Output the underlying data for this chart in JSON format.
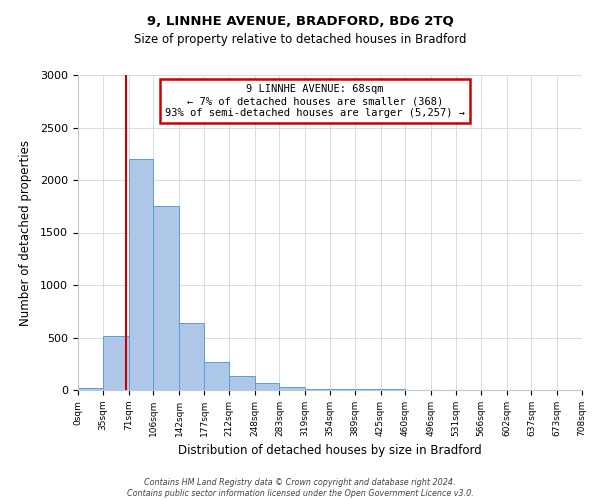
{
  "title1": "9, LINNHE AVENUE, BRADFORD, BD6 2TQ",
  "title2": "Size of property relative to detached houses in Bradford",
  "xlabel": "Distribution of detached houses by size in Bradford",
  "ylabel": "Number of detached properties",
  "bar_color": "#aec6e8",
  "bar_edge_color": "#5a9fd4",
  "grid_color": "#d0dce8",
  "annotation_box_color": "#cc0000",
  "vline_color": "#cc0000",
  "property_size": 68,
  "annotation_line1": "9 LINNHE AVENUE: 68sqm",
  "annotation_line2": "← 7% of detached houses are smaller (368)",
  "annotation_line3": "93% of semi-detached houses are larger (5,257) →",
  "footnote1": "Contains HM Land Registry data © Crown copyright and database right 2024.",
  "footnote2": "Contains public sector information licensed under the Open Government Licence v3.0.",
  "bin_edges": [
    0,
    35,
    71,
    106,
    142,
    177,
    212,
    248,
    283,
    319,
    354,
    389,
    425,
    460,
    496,
    531,
    566,
    602,
    637,
    673,
    708
  ],
  "bar_heights": [
    20,
    510,
    2200,
    1750,
    640,
    270,
    135,
    65,
    30,
    10,
    5,
    5,
    5,
    3,
    2,
    2,
    1,
    1,
    1,
    1
  ],
  "ylim": [
    0,
    3000
  ],
  "yticks": [
    0,
    500,
    1000,
    1500,
    2000,
    2500,
    3000
  ]
}
